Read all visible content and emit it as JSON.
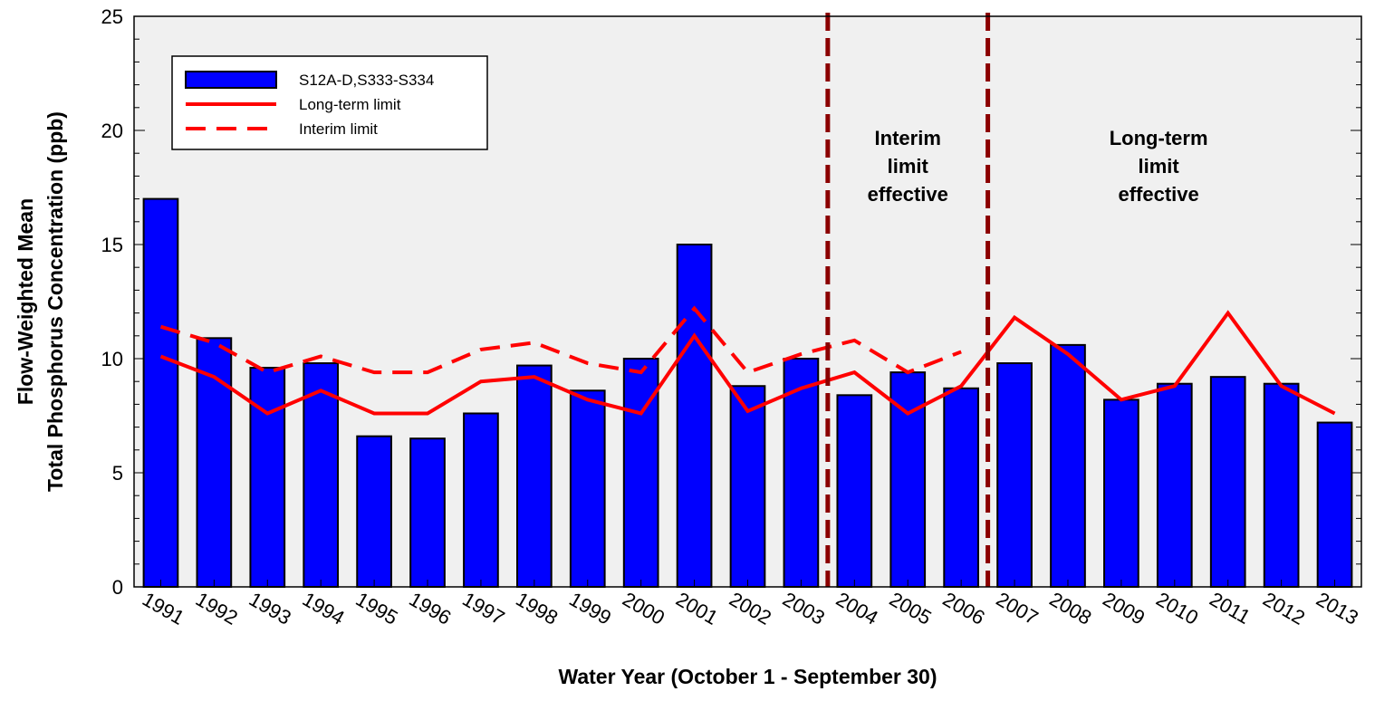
{
  "chart_data": {
    "type": "bar",
    "y_label": [
      "Flow-Weighted Mean",
      "Total Phosphorus Concentration (ppb)"
    ],
    "x_label": "Water Year (October 1 - September 30)",
    "categories": [
      "1991",
      "1992",
      "1993",
      "1994",
      "1995",
      "1996",
      "1997",
      "1998",
      "1999",
      "2000",
      "2001",
      "2002",
      "2003",
      "2004",
      "2005",
      "2006",
      "2007",
      "2008",
      "2009",
      "2010",
      "2011",
      "2012",
      "2013"
    ],
    "series": [
      {
        "name": "S12A-D,S333-S334",
        "type": "bar",
        "color": "#0000ff",
        "values": [
          17.0,
          10.9,
          9.6,
          9.8,
          6.6,
          6.5,
          7.6,
          9.7,
          8.6,
          10.0,
          15.0,
          8.8,
          10.0,
          8.4,
          9.4,
          8.7,
          9.8,
          10.6,
          8.2,
          8.9,
          9.2,
          8.9,
          7.2
        ]
      },
      {
        "name": "Long-term limit",
        "type": "line",
        "color": "#ff0000",
        "style": "solid",
        "values": [
          10.1,
          9.2,
          7.6,
          8.6,
          7.6,
          7.6,
          9.0,
          9.2,
          8.2,
          7.6,
          11.0,
          7.7,
          8.7,
          9.4,
          7.6,
          8.8,
          11.8,
          10.2,
          8.2,
          8.8,
          12.0,
          8.8,
          7.6
        ]
      },
      {
        "name": "Interim limit",
        "type": "line",
        "color": "#ff0000",
        "style": "dashed",
        "values": [
          11.4,
          10.7,
          9.4,
          10.1,
          9.4,
          9.4,
          10.4,
          10.7,
          9.8,
          9.4,
          12.2,
          9.4,
          10.2,
          10.8,
          9.4,
          10.3,
          null,
          null,
          null,
          null,
          null,
          null,
          null
        ]
      }
    ],
    "annotations": [
      [
        "Interim",
        "limit",
        "effective"
      ],
      [
        "Long-term",
        "limit",
        "effective"
      ]
    ],
    "ylim": [
      0,
      25
    ],
    "yticks": [
      0,
      5,
      10,
      15,
      20,
      25
    ]
  }
}
